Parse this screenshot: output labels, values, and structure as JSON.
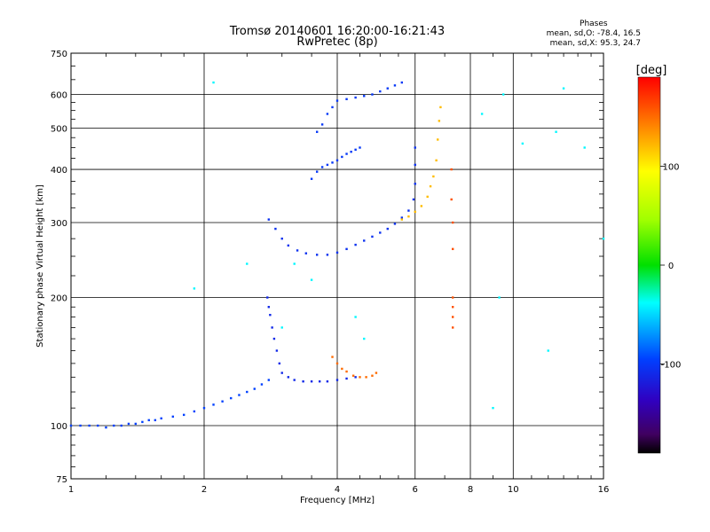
{
  "header": {
    "title": "Tromsø 20140601 16:20:00-16:21:43",
    "subtitle": "RwPretec (8p)"
  },
  "phases": {
    "title": "Phases",
    "line_o": "mean, sd,O: -78.4, 16.5",
    "line_x": "mean, sd,X:  95.3, 24.7"
  },
  "chart_data": {
    "type": "scatter",
    "xlabel": "Frequency [MHz]",
    "ylabel": "Stationary phase Virtual Height [km]",
    "x_scale": "log",
    "y_scale": "log",
    "xlim": [
      1,
      16
    ],
    "ylim": [
      75,
      750
    ],
    "xticks": [
      1,
      2,
      4,
      6,
      8,
      10,
      16
    ],
    "yticks": [
      75,
      100,
      200,
      300,
      400,
      500,
      600,
      750
    ],
    "grid": true,
    "colorbar": {
      "label": "[deg]",
      "range": [
        -190,
        190
      ],
      "ticks": [
        100,
        0,
        -100
      ]
    },
    "series": [
      {
        "color_deg": -95,
        "points": [
          [
            1.0,
            100
          ],
          [
            1.05,
            100
          ],
          [
            1.1,
            100
          ],
          [
            1.15,
            100
          ],
          [
            1.2,
            99
          ],
          [
            1.25,
            100
          ],
          [
            1.3,
            100
          ],
          [
            1.35,
            101
          ],
          [
            1.4,
            101
          ],
          [
            1.45,
            102
          ],
          [
            1.5,
            103
          ],
          [
            1.55,
            103
          ],
          [
            1.6,
            104
          ],
          [
            1.7,
            105
          ],
          [
            1.8,
            106
          ],
          [
            1.9,
            108
          ],
          [
            2.0,
            110
          ],
          [
            2.1,
            112
          ],
          [
            2.2,
            114
          ],
          [
            2.3,
            116
          ],
          [
            2.4,
            118
          ],
          [
            2.5,
            120
          ],
          [
            2.6,
            122
          ],
          [
            2.7,
            125
          ],
          [
            2.8,
            128
          ]
        ]
      },
      {
        "color_deg": -110,
        "points": [
          [
            2.78,
            200
          ],
          [
            2.8,
            190
          ],
          [
            2.82,
            182
          ],
          [
            2.85,
            170
          ],
          [
            2.88,
            160
          ],
          [
            2.92,
            150
          ],
          [
            2.96,
            140
          ],
          [
            3.0,
            133
          ],
          [
            3.1,
            130
          ],
          [
            3.2,
            128
          ],
          [
            3.35,
            127
          ],
          [
            3.5,
            127
          ],
          [
            3.65,
            127
          ],
          [
            3.8,
            127
          ],
          [
            4.0,
            128
          ],
          [
            4.2,
            129
          ],
          [
            4.4,
            130
          ]
        ]
      },
      {
        "color_deg": 150,
        "points": [
          [
            3.9,
            145
          ],
          [
            4.0,
            140
          ],
          [
            4.1,
            136
          ],
          [
            4.2,
            134
          ],
          [
            4.35,
            131
          ],
          [
            4.5,
            130
          ],
          [
            4.65,
            130
          ],
          [
            4.8,
            131
          ],
          [
            4.9,
            133
          ]
        ]
      },
      {
        "color_deg": -105,
        "points": [
          [
            2.8,
            305
          ],
          [
            2.9,
            290
          ],
          [
            3.0,
            275
          ],
          [
            3.1,
            265
          ],
          [
            3.25,
            258
          ],
          [
            3.4,
            254
          ],
          [
            3.6,
            252
          ],
          [
            3.8,
            252
          ],
          [
            4.0,
            255
          ],
          [
            4.2,
            260
          ],
          [
            4.4,
            266
          ],
          [
            4.6,
            272
          ],
          [
            4.8,
            278
          ],
          [
            5.0,
            284
          ],
          [
            5.2,
            290
          ],
          [
            5.4,
            298
          ],
          [
            5.6,
            308
          ],
          [
            5.8,
            320
          ],
          [
            5.95,
            340
          ],
          [
            6.0,
            370
          ],
          [
            6.0,
            410
          ],
          [
            6.0,
            450
          ]
        ]
      },
      {
        "color_deg": -100,
        "points": [
          [
            3.5,
            380
          ],
          [
            3.6,
            395
          ],
          [
            3.7,
            405
          ],
          [
            3.8,
            410
          ],
          [
            3.9,
            415
          ],
          [
            4.0,
            420
          ],
          [
            4.1,
            428
          ],
          [
            4.2,
            435
          ],
          [
            4.3,
            440
          ],
          [
            4.4,
            445
          ],
          [
            4.5,
            450
          ]
        ]
      },
      {
        "color_deg": -100,
        "points": [
          [
            3.6,
            490
          ],
          [
            3.7,
            510
          ],
          [
            3.8,
            540
          ],
          [
            3.9,
            560
          ],
          [
            4.0,
            580
          ],
          [
            4.2,
            585
          ],
          [
            4.4,
            590
          ],
          [
            4.6,
            595
          ],
          [
            4.8,
            600
          ],
          [
            5.0,
            610
          ],
          [
            5.2,
            620
          ],
          [
            5.4,
            630
          ],
          [
            5.6,
            640
          ]
        ]
      },
      {
        "color_deg": 120,
        "points": [
          [
            5.6,
            305
          ],
          [
            5.8,
            310
          ],
          [
            6.0,
            318
          ],
          [
            6.2,
            328
          ],
          [
            6.4,
            345
          ],
          [
            6.5,
            365
          ],
          [
            6.6,
            385
          ],
          [
            6.7,
            420
          ],
          [
            6.75,
            470
          ],
          [
            6.8,
            520
          ],
          [
            6.85,
            560
          ]
        ]
      },
      {
        "color_deg": 160,
        "points": [
          [
            7.3,
            200
          ],
          [
            7.3,
            190
          ],
          [
            7.3,
            180
          ],
          [
            7.3,
            170
          ],
          [
            7.3,
            260
          ],
          [
            7.3,
            300
          ],
          [
            7.25,
            340
          ],
          [
            7.25,
            400
          ]
        ]
      },
      {
        "color_deg": -40,
        "points": [
          [
            1.9,
            210
          ],
          [
            2.1,
            640
          ],
          [
            2.5,
            240
          ],
          [
            3.0,
            170
          ],
          [
            3.2,
            240
          ],
          [
            3.5,
            220
          ],
          [
            4.4,
            180
          ],
          [
            4.6,
            160
          ],
          [
            9.0,
            110
          ],
          [
            9.3,
            200
          ],
          [
            12.0,
            150
          ],
          [
            13.0,
            620
          ],
          [
            14.5,
            450
          ],
          [
            16.0,
            275
          ],
          [
            8.5,
            540
          ],
          [
            9.5,
            600
          ],
          [
            10.5,
            460
          ],
          [
            12.5,
            490
          ]
        ]
      }
    ]
  }
}
